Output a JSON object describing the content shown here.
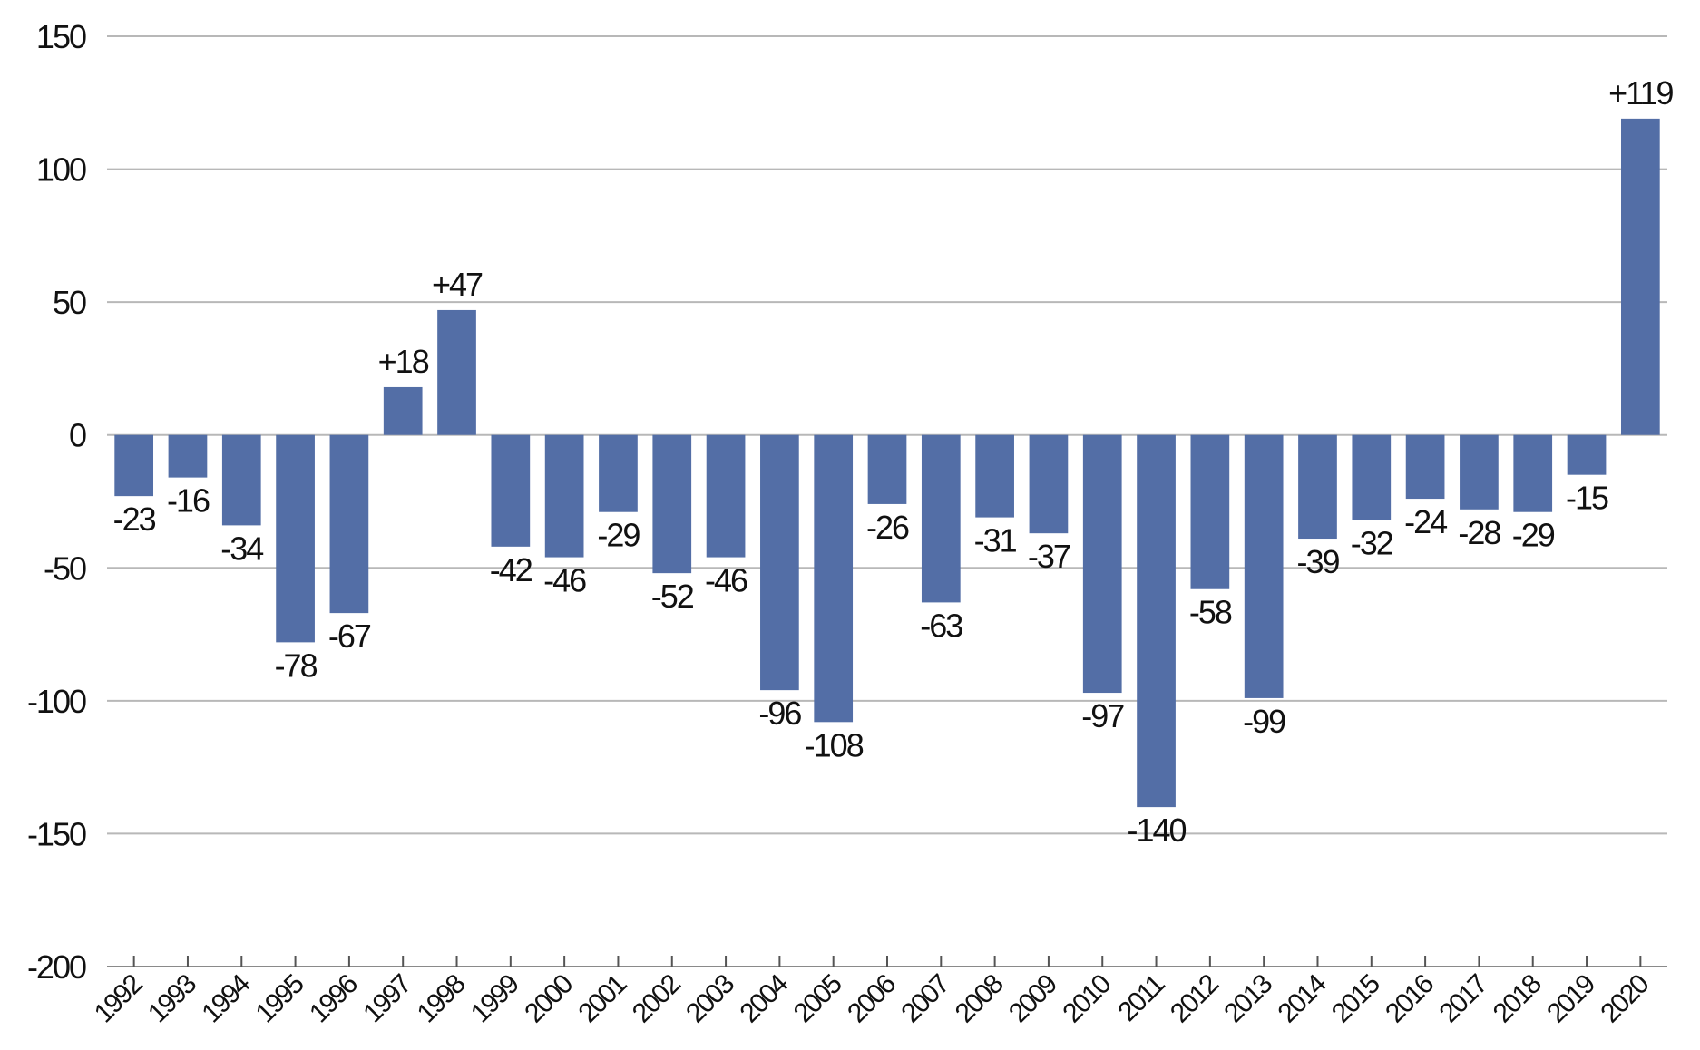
{
  "chart_data": {
    "type": "bar",
    "title": "",
    "xlabel": "",
    "ylabel": "",
    "ylim": [
      -200,
      150
    ],
    "yticks": [
      150,
      100,
      50,
      0,
      -50,
      -100,
      -150,
      -200
    ],
    "ytick_labels": [
      "150",
      "100",
      "50",
      "0",
      "-50",
      "-100",
      "-150",
      "-200"
    ],
    "grid": true,
    "legend": false,
    "bar_color": "#536ea6",
    "categories": [
      "1992",
      "1993",
      "1994",
      "1995",
      "1996",
      "1997",
      "1998",
      "1999",
      "2000",
      "2001",
      "2002",
      "2003",
      "2004",
      "2005",
      "2006",
      "2007",
      "2008",
      "2009",
      "2010",
      "2011",
      "2012",
      "2013",
      "2014",
      "2015",
      "2016",
      "2017",
      "2018",
      "2019",
      "2020"
    ],
    "values": [
      -23,
      -16,
      -34,
      -78,
      -67,
      18,
      47,
      -42,
      -46,
      -29,
      -52,
      -46,
      -96,
      -108,
      -26,
      -63,
      -31,
      -37,
      -97,
      -140,
      -58,
      -99,
      -39,
      -32,
      -24,
      -28,
      -29,
      -15,
      119
    ],
    "data_labels": [
      "-23",
      "-16",
      "-34",
      "-78",
      "-67",
      "+18",
      "+47",
      "-42",
      "-46",
      "-29",
      "-52",
      "-46",
      "-96",
      "-108",
      "-26",
      "-63",
      "-31",
      "-37",
      "-97",
      "-140",
      "-58",
      "-99",
      "-39",
      "-32",
      "-24",
      "-28",
      "-29",
      "-15",
      "+119"
    ]
  }
}
